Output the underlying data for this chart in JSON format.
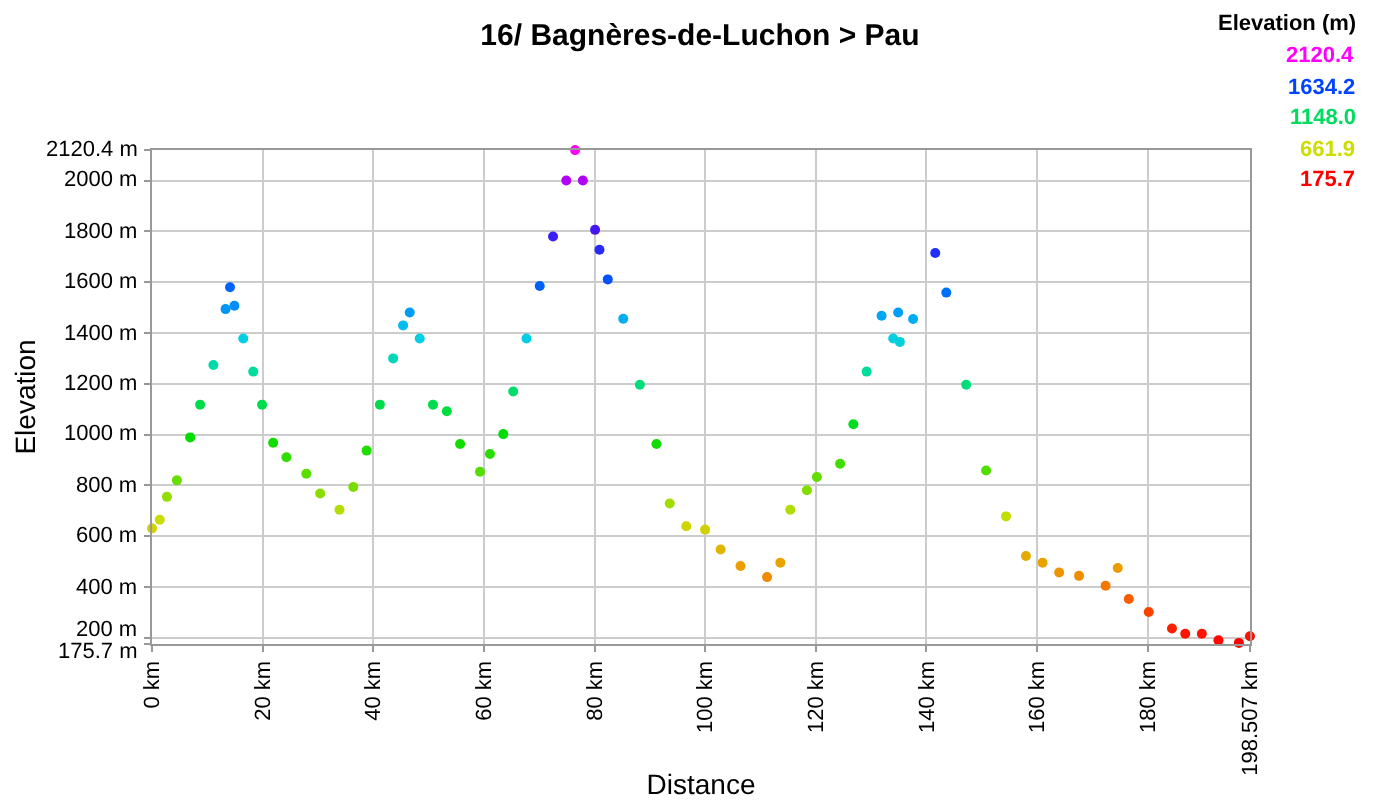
{
  "chart_data": {
    "type": "scatter",
    "title": "16/ Bagnères-de-Luchon > Pau",
    "xlabel": "Distance",
    "ylabel": "Elevation",
    "legend_title": "Elevation (m)",
    "annotations": [
      "2120.4",
      "1634.2",
      "1148.0",
      "661.9",
      "175.7"
    ],
    "x": [
      0,
      1.4,
      2.7,
      4.5,
      6.9,
      8.7,
      11.1,
      13.3,
      14.1,
      14.9,
      16.5,
      18.3,
      19.9,
      21.9,
      24.3,
      27.9,
      30.4,
      33.9,
      36.4,
      38.8,
      41.2,
      43.6,
      45.4,
      46.6,
      48.4,
      50.8,
      53.3,
      55.7,
      59.3,
      61.1,
      63.5,
      65.3,
      67.7,
      70.1,
      72.5,
      74.9,
      76.5,
      77.9,
      80.1,
      80.9,
      82.4,
      85.2,
      88.2,
      91.2,
      93.6,
      96.6,
      100,
      102.8,
      106.4,
      111.2,
      113.6,
      115.4,
      118.4,
      120.2,
      124.4,
      126.8,
      129.2,
      131.9,
      134.0,
      134.9,
      135.2,
      137.6,
      141.6,
      143.6,
      147.2,
      150.8,
      154.4,
      158.0,
      161.0,
      164.0,
      167.6,
      172.4,
      174.6,
      176.6,
      180.2,
      184.4,
      186.8,
      189.8,
      192.8,
      196.5,
      198.5
    ],
    "values": [
      631,
      665,
      755,
      820,
      989,
      1118,
      1274,
      1494,
      1580,
      1507,
      1378,
      1248,
      1118,
      968,
      911,
      846,
      768,
      704,
      794,
      937,
      1118,
      1300,
      1430,
      1481,
      1378,
      1118,
      1092,
      963,
      854,
      924,
      1002,
      1170,
      1378,
      1585,
      1780,
      2000,
      2120,
      2000,
      1806,
      1728,
      1611,
      1456,
      1196,
      963,
      729,
      639,
      626,
      548,
      483,
      439,
      496,
      704,
      781,
      833,
      885,
      1041,
      1248,
      1468,
      1378,
      1481,
      1365,
      1455,
      1715,
      1559,
      1196,
      859,
      678,
      522,
      496,
      457,
      444,
      405,
      475,
      353,
      302,
      237,
      216,
      216,
      190,
      180,
      206
    ],
    "xlim": [
      0,
      198.507
    ],
    "xticks": [
      {
        "value": 0,
        "label": "0 km"
      },
      {
        "value": 20,
        "label": "20 km"
      },
      {
        "value": 40,
        "label": "40 km"
      },
      {
        "value": 60,
        "label": "60 km"
      },
      {
        "value": 80,
        "label": "80 km"
      },
      {
        "value": 100,
        "label": "100 km"
      },
      {
        "value": 120,
        "label": "120 km"
      },
      {
        "value": 140,
        "label": "140 km"
      },
      {
        "value": 160,
        "label": "160 km"
      },
      {
        "value": 180,
        "label": "180 km"
      },
      {
        "value": 198.507,
        "label": "198.507 km"
      }
    ],
    "ylim": [
      175.7,
      2120.4
    ],
    "yticks": [
      {
        "value": 175.7,
        "label": "175.7 m"
      },
      {
        "value": 200,
        "label": "200 m"
      },
      {
        "value": 400,
        "label": "400 m"
      },
      {
        "value": 600,
        "label": "600 m"
      },
      {
        "value": 800,
        "label": "800 m"
      },
      {
        "value": 1000,
        "label": "1000 m"
      },
      {
        "value": 1200,
        "label": "1200 m"
      },
      {
        "value": 1400,
        "label": "1400 m"
      },
      {
        "value": 1600,
        "label": "1600 m"
      },
      {
        "value": 1800,
        "label": "1800 m"
      },
      {
        "value": 2000,
        "label": "2000 m"
      },
      {
        "value": 2120.4,
        "label": "2120.4 m"
      }
    ],
    "grid": true
  }
}
